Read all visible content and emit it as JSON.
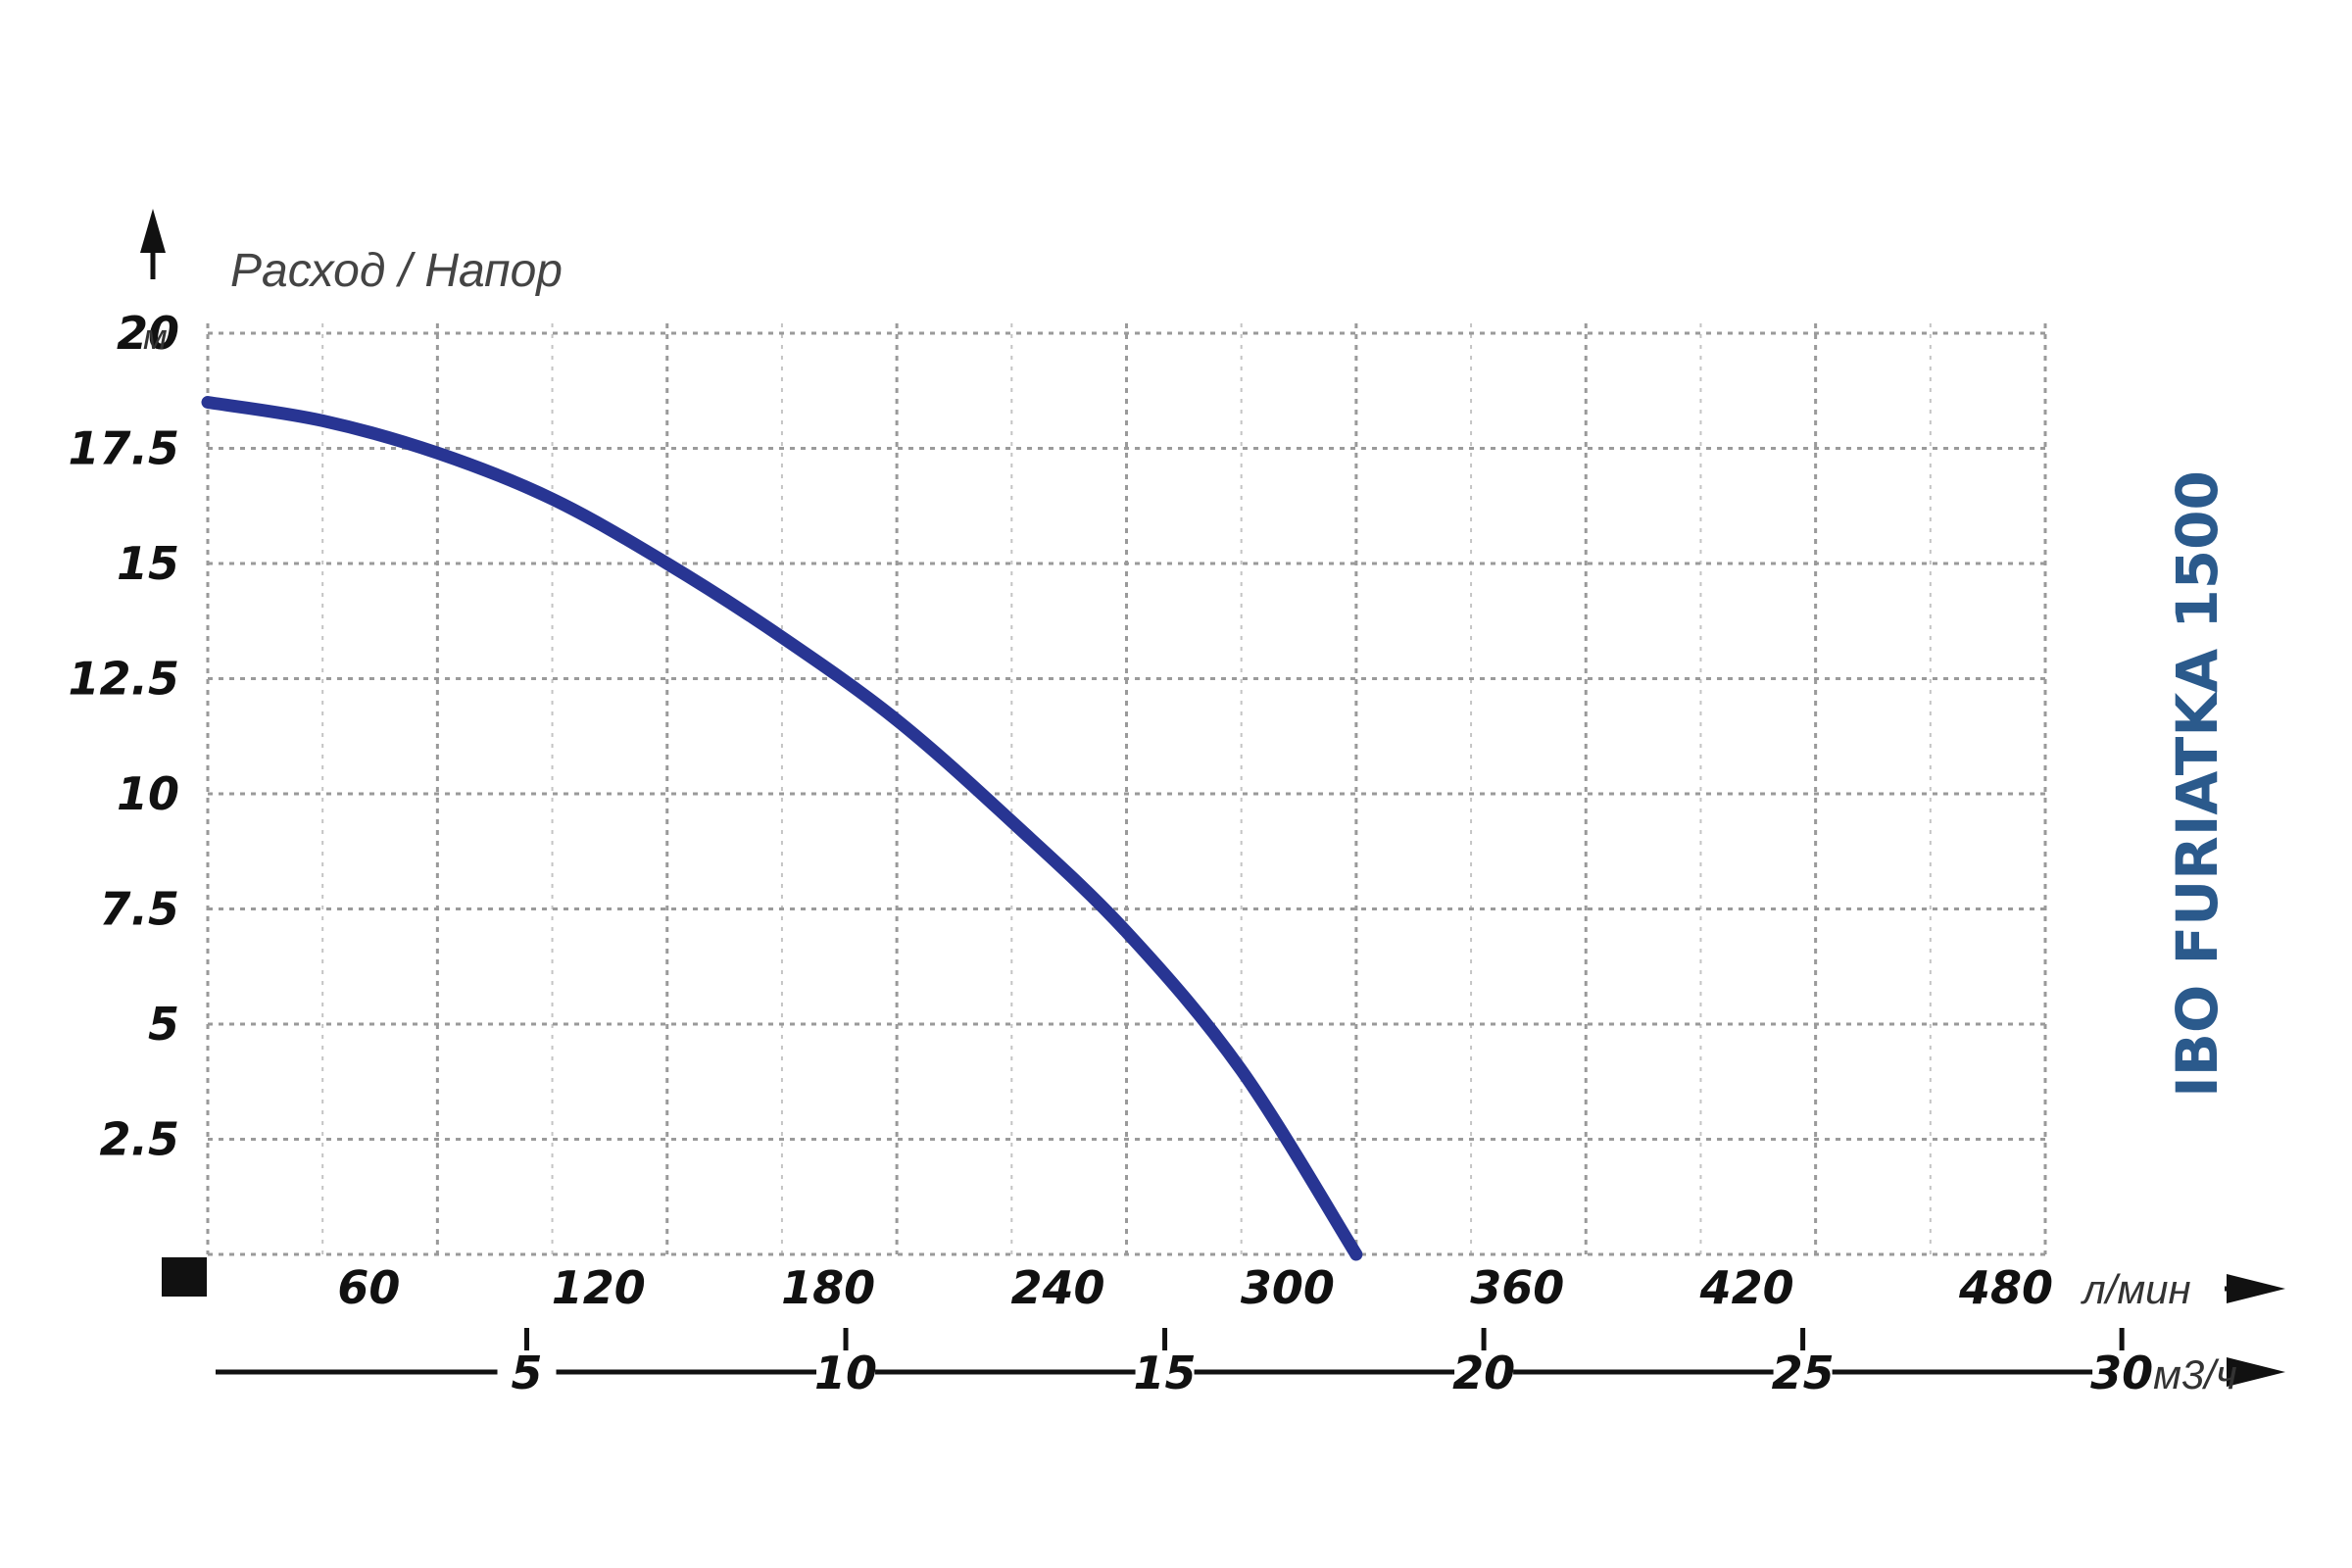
{
  "chart_data": {
    "type": "line",
    "y_axis_title": "Расход / Напор",
    "y_unit": "м",
    "x_unit": "л/мин",
    "x2_unit": "м3/ч",
    "y_ticks": [
      "20",
      "17.5",
      "15",
      "12.5",
      "10",
      "7.5",
      "5",
      "2.5"
    ],
    "y_tick_values": [
      20,
      17.5,
      15,
      12.5,
      10,
      7.5,
      5,
      2.5
    ],
    "x_ticks": [
      "60",
      "120",
      "180",
      "240",
      "300",
      "360",
      "420",
      "480"
    ],
    "x_tick_values": [
      60,
      120,
      180,
      240,
      300,
      360,
      420,
      480
    ],
    "x2_ticks": [
      "5",
      "10",
      "15",
      "20",
      "25",
      "30"
    ],
    "x2_tick_values": [
      5,
      10,
      15,
      20,
      25,
      30
    ],
    "xlim": [
      0,
      480
    ],
    "ylim": [
      0,
      20
    ],
    "grid": true,
    "model_label": "IBO FURIATKA 1500",
    "colors": {
      "curve": "#283593",
      "model_label": "#2b5a8c",
      "grid": "#9a9a9a"
    },
    "series": [
      {
        "x": [
          0,
          30,
          60,
          90,
          120,
          150,
          180,
          210,
          240,
          270,
          300
        ],
        "y": [
          18.5,
          18.1,
          17.4,
          16.4,
          15.0,
          13.4,
          11.6,
          9.4,
          7.0,
          4.0,
          0.0
        ]
      }
    ]
  }
}
